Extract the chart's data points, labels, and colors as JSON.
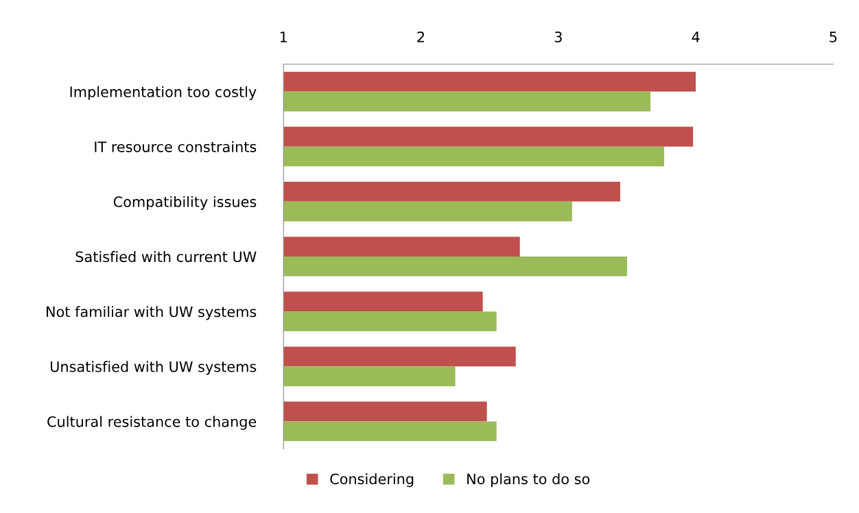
{
  "chart_data": {
    "type": "bar",
    "orientation": "horizontal",
    "categories": [
      "Implementation too costly",
      "IT resource constraints",
      "Compatibility issues",
      "Satisfied with current UW",
      "Not familiar with UW systems",
      "Unsatisfied with UW systems",
      "Cultural resistance to change"
    ],
    "series": [
      {
        "name": "Considering",
        "color": "#c0504d",
        "values": [
          4.0,
          3.98,
          3.45,
          2.72,
          2.45,
          2.69,
          2.48
        ]
      },
      {
        "name": "No plans to do so",
        "color": "#9bbb59",
        "values": [
          3.67,
          3.77,
          3.1,
          3.5,
          2.55,
          2.25,
          2.55
        ]
      }
    ],
    "xlim": [
      1,
      5
    ],
    "xticks": [
      1,
      2,
      3,
      4,
      5
    ],
    "grid": false,
    "legend": "bottom"
  }
}
